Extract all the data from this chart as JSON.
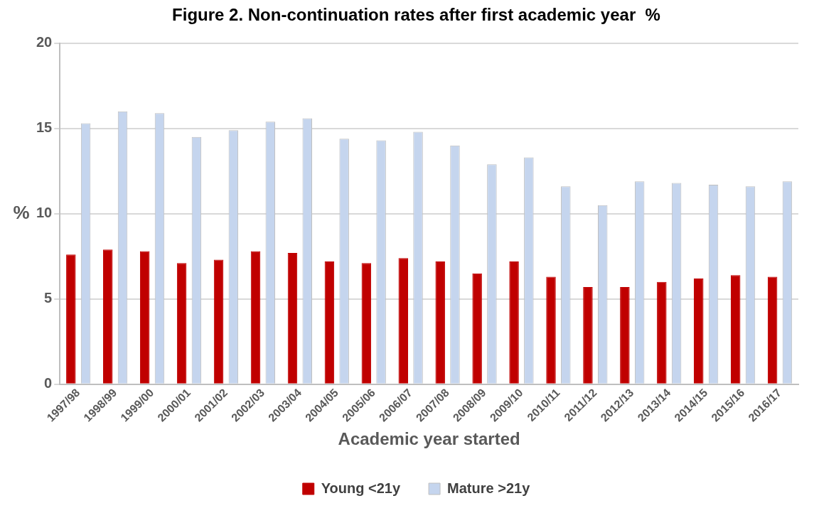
{
  "chart_data": {
    "type": "bar",
    "title": "Figure 2. Non-continuation rates after first academic year  %",
    "xlabel": "Academic year started",
    "ylabel": "%",
    "categories": [
      "1997/98",
      "1998/99",
      "1999/00",
      "2000/01",
      "2001/02",
      "2002/03",
      "2003/04",
      "2004/05",
      "2005/06",
      "2006/07",
      "2007/08",
      "2008/09",
      "2009/10",
      "2010/11",
      "2011/12",
      "2012/13",
      "2013/14",
      "2014/15",
      "2015/16",
      "2016/17"
    ],
    "series": [
      {
        "name": "Young <21y",
        "color": "#c00000",
        "values": [
          7.6,
          7.9,
          7.8,
          7.1,
          7.3,
          7.8,
          7.7,
          7.2,
          7.1,
          7.4,
          7.2,
          6.5,
          7.2,
          6.3,
          5.7,
          5.7,
          6.0,
          6.2,
          6.4,
          6.3
        ]
      },
      {
        "name": "Mature >21y",
        "color": "#c5d5ee",
        "values": [
          15.3,
          16.0,
          15.9,
          14.5,
          14.9,
          15.4,
          15.6,
          14.4,
          14.3,
          14.8,
          14.0,
          12.9,
          13.3,
          11.6,
          10.5,
          11.9,
          11.8,
          11.7,
          11.6,
          11.9
        ]
      }
    ],
    "ylim": [
      0,
      20
    ],
    "yticks": [
      0,
      5,
      10,
      15,
      20
    ],
    "grid": "y",
    "legend": "bottom"
  }
}
